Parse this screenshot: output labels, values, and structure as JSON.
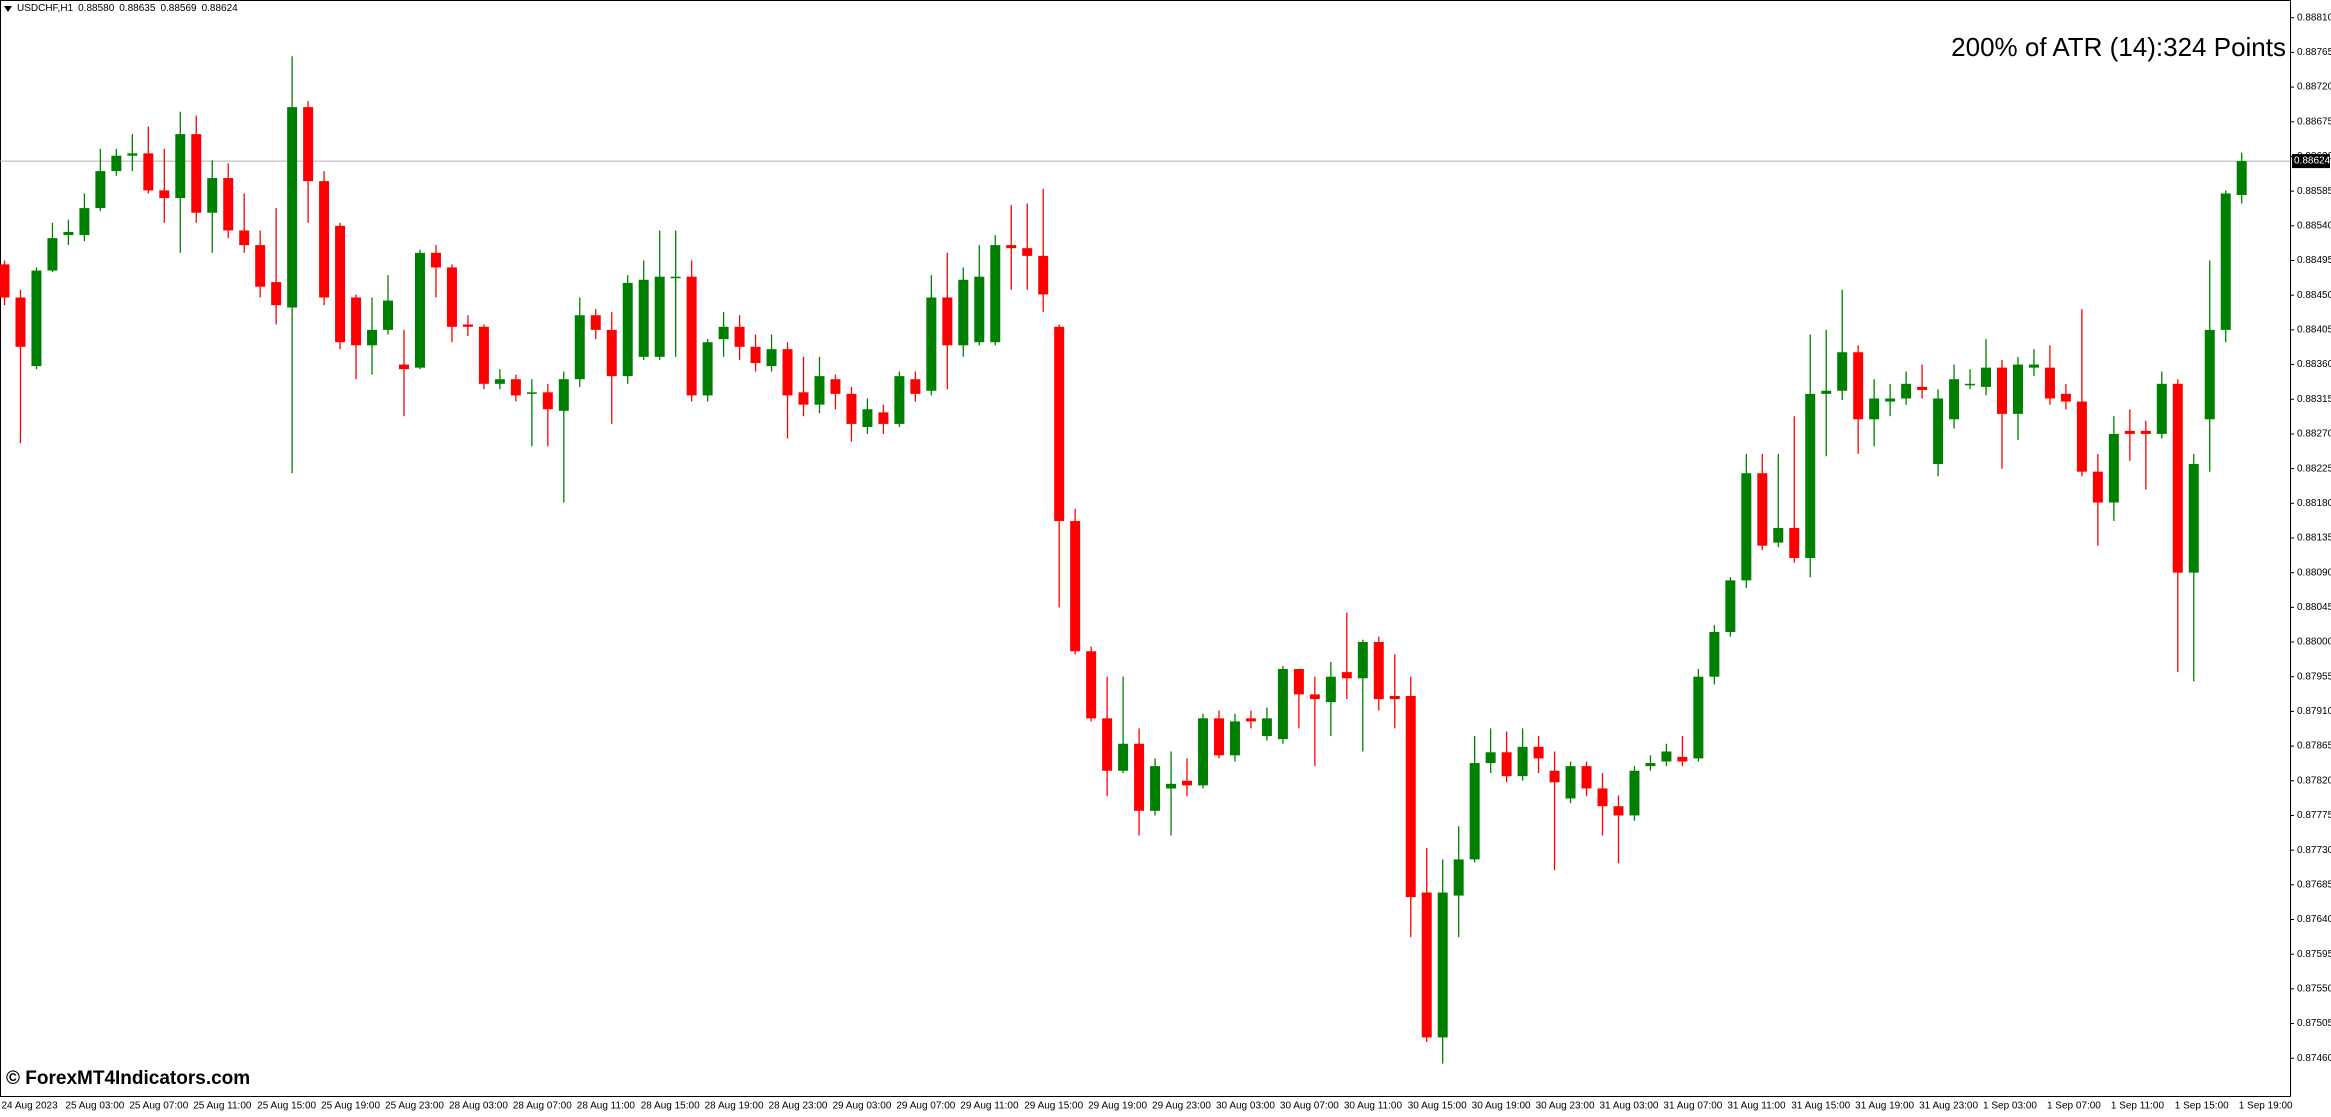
{
  "chart_data": {
    "type": "candlestick",
    "title": "USDCHF,H1",
    "header_values": [
      "0.88580",
      "0.88635",
      "0.88569",
      "0.88624"
    ],
    "annotation": "200% of ATR (14):324 Points",
    "annotation_color": "#ff0000",
    "watermark": "© ForexMT4Indicators.com",
    "up_color": "#008000",
    "down_color": "#ff0000",
    "categories": [
      "24 Aug 2023",
      null,
      null,
      null,
      "25 Aug 03:00",
      null,
      null,
      null,
      "25 Aug 07:00",
      null,
      null,
      null,
      "25 Aug 11:00",
      null,
      null,
      null,
      "25 Aug 15:00",
      null,
      null,
      null,
      "25 Aug 19:00",
      null,
      null,
      null,
      "25 Aug 23:00",
      null,
      null,
      null,
      "28 Aug 03:00",
      null,
      null,
      null,
      "28 Aug 07:00",
      null,
      null,
      null,
      "28 Aug 11:00",
      null,
      null,
      null,
      "28 Aug 15:00",
      null,
      null,
      null,
      "28 Aug 19:00",
      null,
      null,
      null,
      "28 Aug 23:00",
      null,
      null,
      null,
      "29 Aug 03:00",
      null,
      null,
      null,
      "29 Aug 07:00",
      null,
      null,
      null,
      "29 Aug 11:00",
      null,
      null,
      null,
      "29 Aug 15:00",
      null,
      null,
      null,
      "29 Aug 19:00",
      null,
      null,
      null,
      "29 Aug 23:00",
      null,
      null,
      null,
      "30 Aug 03:00",
      null,
      null,
      null,
      "30 Aug 07:00",
      null,
      null,
      null,
      "30 Aug 11:00",
      null,
      null,
      null,
      "30 Aug 15:00",
      null,
      null,
      null,
      "30 Aug 19:00",
      null,
      null,
      null,
      "30 Aug 23:00",
      null,
      null,
      null,
      "31 Aug 03:00",
      null,
      null,
      null,
      "31 Aug 07:00",
      null,
      null,
      null,
      "31 Aug 11:00",
      null,
      null,
      null,
      "31 Aug 15:00",
      null,
      null,
      null,
      "31 Aug 19:00",
      null,
      null,
      null,
      "31 Aug 23:00",
      null,
      null,
      null,
      "1 Sep 03:00",
      null,
      null,
      null,
      "1 Sep 07:00",
      null,
      null,
      null,
      "1 Sep 11:00",
      null,
      null,
      null,
      "1 Sep 15:00",
      null,
      null,
      null,
      "1 Sep 19:00"
    ],
    "open": [
      0.8849,
      0.88447,
      0.88358,
      0.88482,
      0.88528,
      0.88528,
      0.88563,
      0.88611,
      0.88631,
      0.88634,
      0.88586,
      0.88576,
      0.88659,
      0.88557,
      0.88602,
      0.88534,
      0.88515,
      0.88467,
      0.88434,
      0.88694,
      0.88598,
      0.8854,
      0.88447,
      0.88385,
      0.88405,
      0.8836,
      0.88356,
      0.88505,
      0.88486,
      0.88412,
      0.88409,
      0.88335,
      0.88341,
      0.88322,
      0.88324,
      0.883,
      0.88341,
      0.88424,
      0.88405,
      0.88345,
      0.8837,
      0.8837,
      0.88474,
      0.88474,
      0.8832,
      0.88393,
      0.88409,
      0.88383,
      0.88358,
      0.8838,
      0.88324,
      0.88308,
      0.88341,
      0.88322,
      0.88279,
      0.88298,
      0.88283,
      0.88341,
      0.88326,
      0.88447,
      0.88385,
      0.88389,
      0.88389,
      0.88515,
      0.88511,
      0.88501,
      0.88409,
      0.88157,
      0.87988,
      0.87901,
      0.87833,
      0.87868,
      0.87781,
      0.8781,
      0.8782,
      0.87814,
      0.87901,
      0.87853,
      0.87901,
      0.87878,
      0.87874,
      0.87965,
      0.87932,
      0.87922,
      0.87961,
      0.87953,
      0.88,
      0.8793,
      0.8793,
      0.87675,
      0.87487,
      0.87671,
      0.87718,
      0.87843,
      0.87857,
      0.87826,
      0.87864,
      0.87833,
      0.87797,
      0.87839,
      0.8781,
      0.87787,
      0.87775,
      0.87839,
      0.87845,
      0.87851,
      0.87849,
      0.87955,
      0.88013,
      0.8808,
      0.88219,
      0.88129,
      0.88148,
      0.88109,
      0.88322,
      0.88326,
      0.88376,
      0.88289,
      0.88312,
      0.88316,
      0.88331,
      0.88231,
      0.88289,
      0.88335,
      0.88331,
      0.88356,
      0.88296,
      0.88356,
      0.88356,
      0.88322,
      0.88312,
      0.88221,
      0.88181,
      0.88274,
      0.88274,
      0.8827,
      0.88335,
      0.8809,
      0.88289,
      0.88405,
      0.8858
    ],
    "high": [
      0.88495,
      0.88457,
      0.88486,
      0.88544,
      0.88548,
      0.88582,
      0.8864,
      0.8864,
      0.88659,
      0.88669,
      0.8864,
      0.88688,
      0.88683,
      0.88625,
      0.88621,
      0.88582,
      0.88534,
      0.88563,
      0.8876,
      0.88702,
      0.88611,
      0.88544,
      0.88451,
      0.88447,
      0.88476,
      0.88405,
      0.88509,
      0.88515,
      0.8849,
      0.88424,
      0.88412,
      0.88354,
      0.88347,
      0.88341,
      0.88335,
      0.88351,
      0.88447,
      0.88432,
      0.88428,
      0.88476,
      0.88495,
      0.88534,
      0.88534,
      0.88495,
      0.88393,
      0.88428,
      0.88424,
      0.88399,
      0.88399,
      0.88389,
      0.8837,
      0.8837,
      0.88347,
      0.88331,
      0.88316,
      0.88308,
      0.88351,
      0.88351,
      0.88476,
      0.88505,
      0.88486,
      0.88515,
      0.88528,
      0.88567,
      0.88569,
      0.88588,
      0.88412,
      0.88173,
      0.87994,
      0.87955,
      0.87955,
      0.87888,
      0.87849,
      0.87858,
      0.87849,
      0.87907,
      0.87911,
      0.87907,
      0.87911,
      0.87915,
      0.87969,
      0.87965,
      0.87955,
      0.87974,
      0.88038,
      0.88003,
      0.88007,
      0.87984,
      0.87955,
      0.87733,
      0.87718,
      0.87761,
      0.87878,
      0.87888,
      0.87884,
      0.87888,
      0.87878,
      0.87858,
      0.87845,
      0.87845,
      0.8783,
      0.87801,
      0.87839,
      0.87853,
      0.87868,
      0.87878,
      0.87965,
      0.88022,
      0.88084,
      0.88244,
      0.88244,
      0.88244,
      0.88293,
      0.88399,
      0.88405,
      0.88457,
      0.88385,
      0.88341,
      0.88335,
      0.88351,
      0.8836,
      0.88328,
      0.8836,
      0.88354,
      0.88393,
      0.88366,
      0.8837,
      0.8838,
      0.88385,
      0.88335,
      0.88432,
      0.88244,
      0.88293,
      0.88302,
      0.88287,
      0.88351,
      0.88341,
      0.88244,
      0.88495,
      0.88586,
      0.88635
    ],
    "low": [
      0.88437,
      0.88258,
      0.88354,
      0.8848,
      0.88515,
      0.8852,
      0.88559,
      0.88605,
      0.88611,
      0.88582,
      0.88544,
      0.88505,
      0.88544,
      0.88505,
      0.88524,
      0.88505,
      0.88447,
      0.88412,
      0.88219,
      0.88544,
      0.88437,
      0.8838,
      0.88341,
      0.88347,
      0.88399,
      0.88293,
      0.88354,
      0.88447,
      0.88389,
      0.88397,
      0.88328,
      0.88328,
      0.88312,
      0.88254,
      0.88254,
      0.88181,
      0.88331,
      0.88393,
      0.88283,
      0.88335,
      0.88366,
      0.88366,
      0.8837,
      0.88312,
      0.88312,
      0.8837,
      0.88366,
      0.88351,
      0.88351,
      0.88264,
      0.88293,
      0.88297,
      0.88302,
      0.8826,
      0.8827,
      0.8827,
      0.88279,
      0.88312,
      0.8832,
      0.88328,
      0.8837,
      0.88385,
      0.88385,
      0.88457,
      0.88457,
      0.88428,
      0.88045,
      0.87984,
      0.87897,
      0.878,
      0.8783,
      0.87749,
      0.87775,
      0.87749,
      0.878,
      0.8781,
      0.87849,
      0.87845,
      0.87888,
      0.87872,
      0.87868,
      0.87888,
      0.87839,
      0.87878,
      0.87926,
      0.87858,
      0.87911,
      0.87888,
      0.87617,
      0.87481,
      0.87453,
      0.87617,
      0.87714,
      0.8783,
      0.87818,
      0.8782,
      0.8783,
      0.87704,
      0.87791,
      0.878,
      0.87749,
      0.87713,
      0.87768,
      0.87833,
      0.87839,
      0.87839,
      0.87845,
      0.87945,
      0.88007,
      0.8807,
      0.88119,
      0.88123,
      0.88103,
      0.88084,
      0.88241,
      0.88314,
      0.88244,
      0.88254,
      0.88293,
      0.88308,
      0.88316,
      0.88215,
      0.88277,
      0.88328,
      0.8832,
      0.88225,
      0.88262,
      0.88345,
      0.88308,
      0.88302,
      0.88215,
      0.88125,
      0.88157,
      0.88235,
      0.88198,
      0.88264,
      0.87961,
      0.87949,
      0.88221,
      0.88389,
      0.88569
    ],
    "close": [
      0.88447,
      0.88383,
      0.88482,
      0.88524,
      0.88532,
      0.88563,
      0.88611,
      0.88631,
      0.88634,
      0.88586,
      0.88576,
      0.88659,
      0.88557,
      0.88602,
      0.88534,
      0.88515,
      0.88461,
      0.88437,
      0.88694,
      0.88598,
      0.88447,
      0.88389,
      0.88385,
      0.88405,
      0.88443,
      0.88354,
      0.88505,
      0.88486,
      0.88409,
      0.88409,
      0.88335,
      0.88341,
      0.8832,
      0.88324,
      0.88302,
      0.88341,
      0.88424,
      0.88405,
      0.88345,
      0.88466,
      0.8847,
      0.88474,
      0.88474,
      0.8832,
      0.88389,
      0.88409,
      0.88383,
      0.88362,
      0.8838,
      0.8832,
      0.88308,
      0.88345,
      0.88322,
      0.88283,
      0.88302,
      0.88283,
      0.88345,
      0.88322,
      0.88447,
      0.88385,
      0.8847,
      0.88474,
      0.88515,
      0.88511,
      0.88501,
      0.88451,
      0.88157,
      0.87988,
      0.87901,
      0.87833,
      0.87868,
      0.87781,
      0.87839,
      0.87816,
      0.87814,
      0.87901,
      0.87853,
      0.87897,
      0.87897,
      0.87901,
      0.87965,
      0.87932,
      0.87926,
      0.87955,
      0.87953,
      0.88,
      0.87926,
      0.87926,
      0.87669,
      0.87487,
      0.87675,
      0.87718,
      0.87843,
      0.87857,
      0.87826,
      0.87864,
      0.87849,
      0.87818,
      0.87839,
      0.8781,
      0.87787,
      0.87775,
      0.87833,
      0.87843,
      0.87858,
      0.87845,
      0.87955,
      0.88013,
      0.8808,
      0.88219,
      0.88125,
      0.88148,
      0.88109,
      0.88322,
      0.88326,
      0.88376,
      0.88289,
      0.88316,
      0.88316,
      0.88335,
      0.88327,
      0.88316,
      0.88341,
      0.88335,
      0.88356,
      0.88296,
      0.8836,
      0.8836,
      0.88316,
      0.88312,
      0.88221,
      0.88181,
      0.8827,
      0.8827,
      0.8827,
      0.88335,
      0.8809,
      0.88231,
      0.88405,
      0.88582,
      0.88624
    ],
    "ylim": [
      0.87411,
      0.88833
    ],
    "yticks": [
      {
        "value": 0.8881,
        "label": "0.88810"
      },
      0.88765,
      {
        "value": 0.8872,
        "label": "0.88720"
      },
      0.88675,
      {
        "value": 0.8863,
        "label": "0.88630"
      },
      0.88585,
      {
        "value": 0.8854,
        "label": "0.88540"
      },
      0.88495,
      {
        "value": 0.8845,
        "label": "0.88450"
      },
      0.88405,
      {
        "value": 0.8836,
        "label": "0.88360"
      },
      0.88315,
      {
        "value": 0.8827,
        "label": "0.88270"
      },
      0.88225,
      {
        "value": 0.8818,
        "label": "0.88180"
      },
      0.88135,
      {
        "value": 0.8809,
        "label": "0.88090"
      },
      0.88045,
      {
        "value": 0.88,
        "label": "0.88000"
      },
      0.87955,
      {
        "value": 0.8791,
        "label": "0.87910"
      },
      0.87865,
      {
        "value": 0.8782,
        "label": "0.87820"
      },
      0.87775,
      {
        "value": 0.8773,
        "label": "0.87730"
      },
      0.87685,
      {
        "value": 0.8764,
        "label": "0.87640"
      },
      0.87595,
      {
        "value": 0.8755,
        "label": "0.87550"
      },
      0.87505,
      {
        "value": 0.8746,
        "label": "0.87460"
      }
    ],
    "price_line": {
      "value": 0.88624,
      "label": "0.88624"
    }
  }
}
